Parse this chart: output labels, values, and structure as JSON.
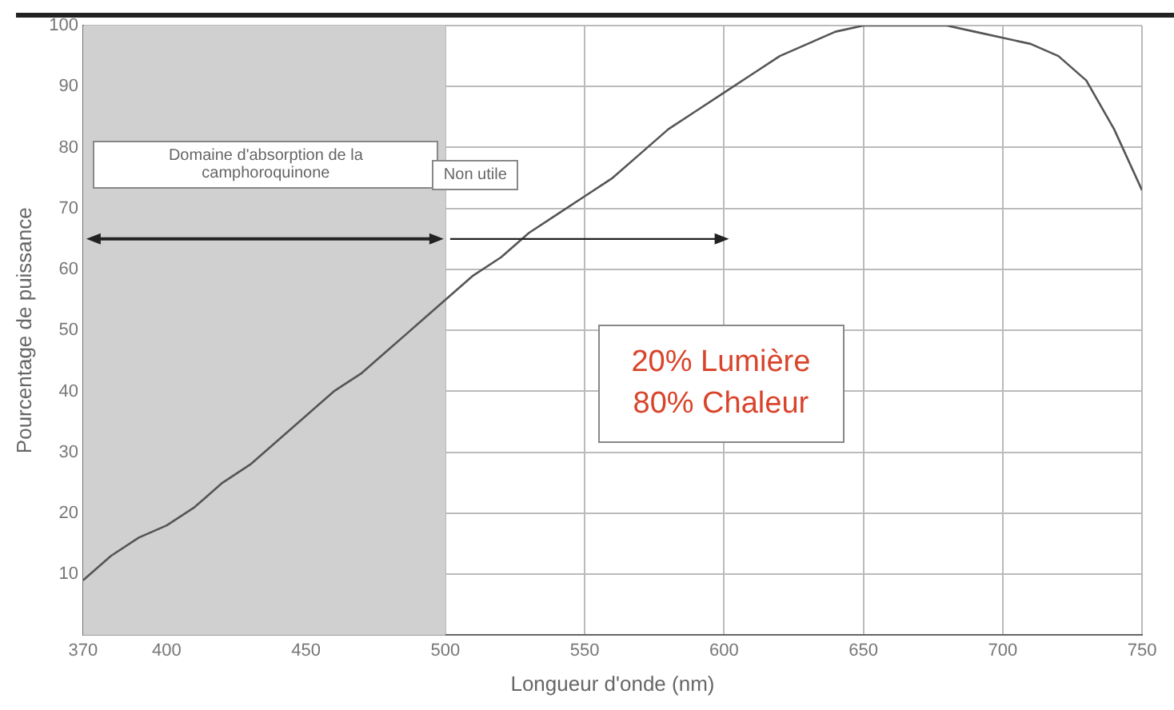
{
  "chart_data": {
    "type": "line",
    "xlabel": "Longueur d'onde (nm)",
    "ylabel": "Pourcentage de puissance",
    "x": [
      370,
      380,
      390,
      400,
      410,
      420,
      430,
      440,
      450,
      460,
      470,
      480,
      490,
      500,
      510,
      520,
      530,
      540,
      550,
      560,
      570,
      580,
      590,
      600,
      610,
      620,
      630,
      640,
      650,
      660,
      670,
      680,
      690,
      700,
      710,
      720,
      730,
      740,
      750
    ],
    "series": [
      {
        "color": "#555555",
        "values": [
          9,
          13,
          16,
          18,
          21,
          25,
          28,
          32,
          36,
          40,
          43,
          47,
          51,
          55,
          59,
          62,
          66,
          69,
          72,
          75,
          79,
          83,
          86,
          89,
          92,
          95,
          97,
          99,
          100,
          100,
          100,
          100,
          99,
          98,
          97,
          95,
          91,
          83,
          73
        ]
      }
    ],
    "xlim": [
      370,
      750
    ],
    "xticks": [
      370,
      400,
      450,
      500,
      550,
      600,
      650,
      700,
      750
    ],
    "ylim": [
      0,
      100
    ],
    "yticks": [
      10,
      20,
      30,
      40,
      50,
      60,
      70,
      80,
      90,
      100
    ],
    "grid": true,
    "legend": false,
    "marker": "none",
    "line_style": "solid",
    "bands": [
      {
        "axis": "x",
        "from": 370,
        "to": 500,
        "label": "Domaine d'absorption de la camphoroquinone",
        "color": "#d0d0d0"
      }
    ],
    "annotations": [
      "Non utile",
      "20% Lumière\n80% Chaleur"
    ]
  }
}
